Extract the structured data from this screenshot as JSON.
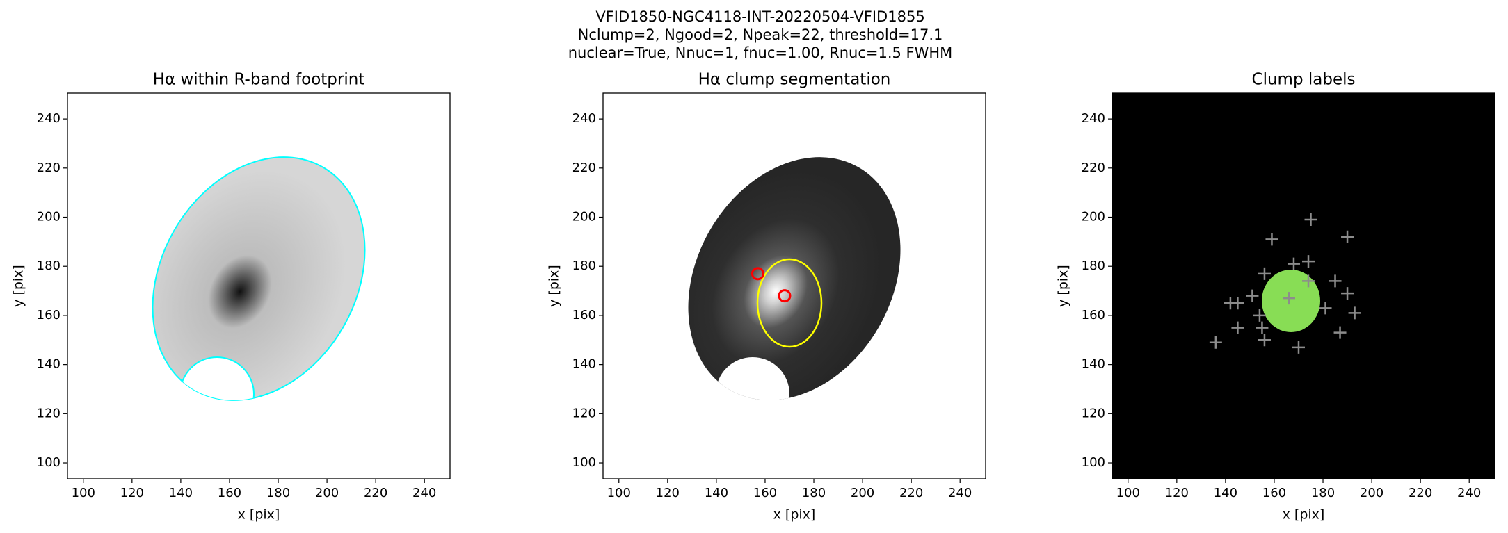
{
  "figure_title": [
    "VFID1850-NGC4118-INT-20220504-VFID1855",
    "Nclump=2, Ngood=2, Npeak=22, threshold=17.1",
    "nuclear=True, Nnuc=1, fnuc=1.00, Rnuc=1.5 FWHM"
  ],
  "chart_data": [
    {
      "type": "image",
      "style": "footprint",
      "title": "Hα within R-band footprint",
      "xlabel": "x [pix]",
      "ylabel": "y [pix]",
      "xlim": [
        93.5,
        250.5
      ],
      "ylim": [
        93.5,
        250.5
      ],
      "xticks": [
        100,
        120,
        140,
        160,
        180,
        200,
        220,
        240
      ],
      "yticks": [
        100,
        120,
        140,
        160,
        180,
        200,
        220,
        240
      ],
      "contour_color": "#00ffff"
    },
    {
      "type": "image",
      "style": "segmentation",
      "title": "Hα clump segmentation",
      "xlabel": "x [pix]",
      "ylabel": "y [pix]",
      "xlim": [
        93.5,
        250.5
      ],
      "ylim": [
        93.5,
        250.5
      ],
      "xticks": [
        100,
        120,
        140,
        160,
        180,
        200,
        220,
        240
      ],
      "yticks": [
        100,
        120,
        140,
        160,
        180,
        200,
        220,
        240
      ],
      "contour_color": "#ffff00",
      "clumps": {
        "x": [
          157,
          168
        ],
        "y": [
          177,
          168
        ],
        "color": "#ff0000"
      }
    },
    {
      "type": "image",
      "style": "labels",
      "title": "Clump labels",
      "xlabel": "x [pix]",
      "ylabel": "y [pix]",
      "xlim": [
        93.5,
        250.5
      ],
      "ylim": [
        93.5,
        250.5
      ],
      "xticks": [
        100,
        120,
        140,
        160,
        180,
        200,
        220,
        240
      ],
      "yticks": [
        100,
        120,
        140,
        160,
        180,
        200,
        220,
        240
      ],
      "label_color": "#88dd55",
      "peaks": {
        "x": [
          175,
          159,
          190,
          174,
          168,
          174,
          185,
          190,
          181,
          193,
          166,
          151,
          142,
          145,
          154,
          145,
          155,
          156,
          136,
          170,
          187,
          156
        ],
        "y": [
          199,
          191,
          192,
          182,
          181,
          174,
          174,
          169,
          163,
          161,
          167,
          168,
          165,
          165,
          160,
          155,
          155,
          150,
          149,
          147,
          153,
          177
        ],
        "color": "#8c8c8c"
      }
    }
  ]
}
